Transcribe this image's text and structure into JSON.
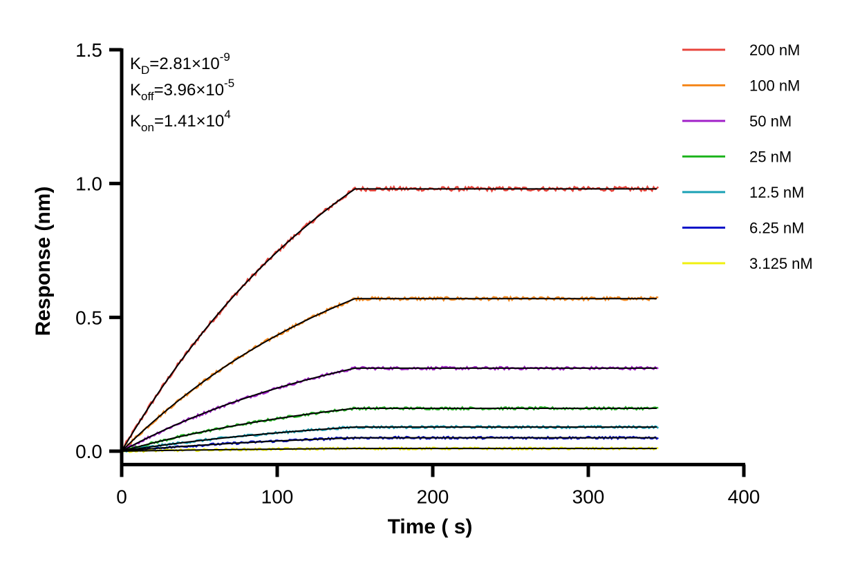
{
  "chart_data": {
    "type": "line",
    "title": "",
    "xlabel": "Time ( s)",
    "ylabel": "Response (nm)",
    "xlim": [
      0,
      400
    ],
    "ylim": [
      0,
      1.5
    ],
    "x_ticks": [
      "0",
      "100",
      "200",
      "300",
      "400"
    ],
    "y_ticks": [
      "0.0",
      "0.5",
      "1.0",
      "1.5"
    ],
    "grid": false,
    "legend_position": "top-right",
    "association_end_s": 150,
    "end_time_s": 345,
    "fit_line_color": "#000000",
    "series": [
      {
        "name": "200 nM",
        "color": "#e8453c",
        "plateau": 0.98
      },
      {
        "name": "100 nM",
        "color": "#f5891f",
        "plateau": 0.57
      },
      {
        "name": "50 nM",
        "color": "#a020c8",
        "plateau": 0.31
      },
      {
        "name": "25 nM",
        "color": "#22b522",
        "plateau": 0.16
      },
      {
        "name": "12.5 nM",
        "color": "#1aa0b4",
        "plateau": 0.09
      },
      {
        "name": "6.25 nM",
        "color": "#0a14c8",
        "plateau": 0.05
      },
      {
        "name": "3.125 nM",
        "color": "#f0f010",
        "plateau": 0.01
      }
    ],
    "annotations": {
      "kd": {
        "base": "K",
        "sub": "D",
        "rest": "=2.81×10",
        "sup": "-9"
      },
      "koff": {
        "base": "K",
        "sub": "off",
        "rest": "=3.96×10",
        "sup": "-5"
      },
      "kon": {
        "base": "K",
        "sub": "on",
        "rest": "=1.41×10",
        "sup": "4"
      }
    }
  }
}
